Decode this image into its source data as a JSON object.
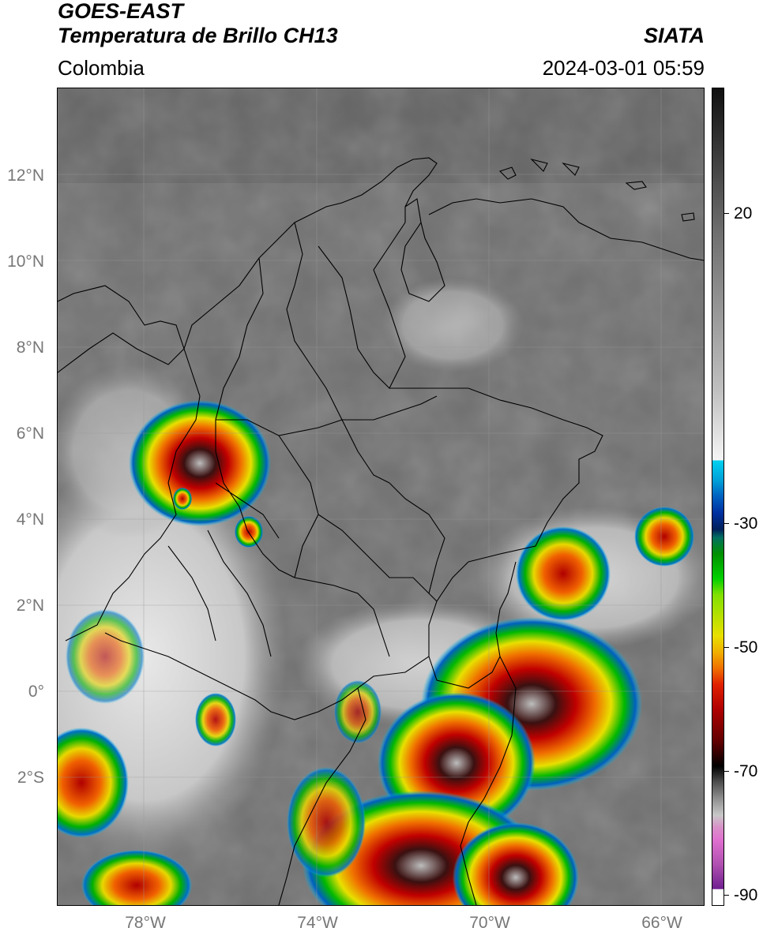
{
  "header": {
    "satellite": "GOES-EAST",
    "product": "Temperatura de Brillo CH13",
    "region": "Colombia",
    "organization": "SIATA",
    "timestamp": "2024-03-01 05:59"
  },
  "map": {
    "extent": {
      "lon_min": -80,
      "lon_max": -65,
      "lat_min": -5,
      "lat_max": 14
    },
    "gridlines": true,
    "lat_ticks": [
      {
        "value": 12,
        "label": "12°N"
      },
      {
        "value": 10,
        "label": "10°N"
      },
      {
        "value": 8,
        "label": "8°N"
      },
      {
        "value": 6,
        "label": "6°N"
      },
      {
        "value": 4,
        "label": "4°N"
      },
      {
        "value": 2,
        "label": "2°N"
      },
      {
        "value": 0,
        "label": "0°"
      },
      {
        "value": -2,
        "label": "2°S"
      }
    ],
    "lon_ticks": [
      {
        "value": -78,
        "label": "78°W"
      },
      {
        "value": -74,
        "label": "74°W"
      },
      {
        "value": -70,
        "label": "70°W"
      },
      {
        "value": -66,
        "label": "66°W"
      }
    ]
  },
  "colorbar": {
    "ticks": [
      {
        "value": 20,
        "label": "20"
      },
      {
        "value": -30,
        "label": "-30"
      },
      {
        "value": -50,
        "label": "-50"
      },
      {
        "value": -70,
        "label": "-70"
      },
      {
        "value": -90,
        "label": "-90"
      }
    ],
    "colors": {
      "warm_top": "#101010",
      "warm_bottom": "#f8f8f8",
      "cyan": "#00c8f0",
      "blue": "#0028a0",
      "green": "#00c800",
      "yellow": "#f0e000",
      "orange": "#f08000",
      "red": "#d00000",
      "dark_red": "#500000",
      "black": "#000000",
      "light_gray": "#c8c8c8",
      "magenta": "#e070d0",
      "purple": "#702090"
    }
  }
}
